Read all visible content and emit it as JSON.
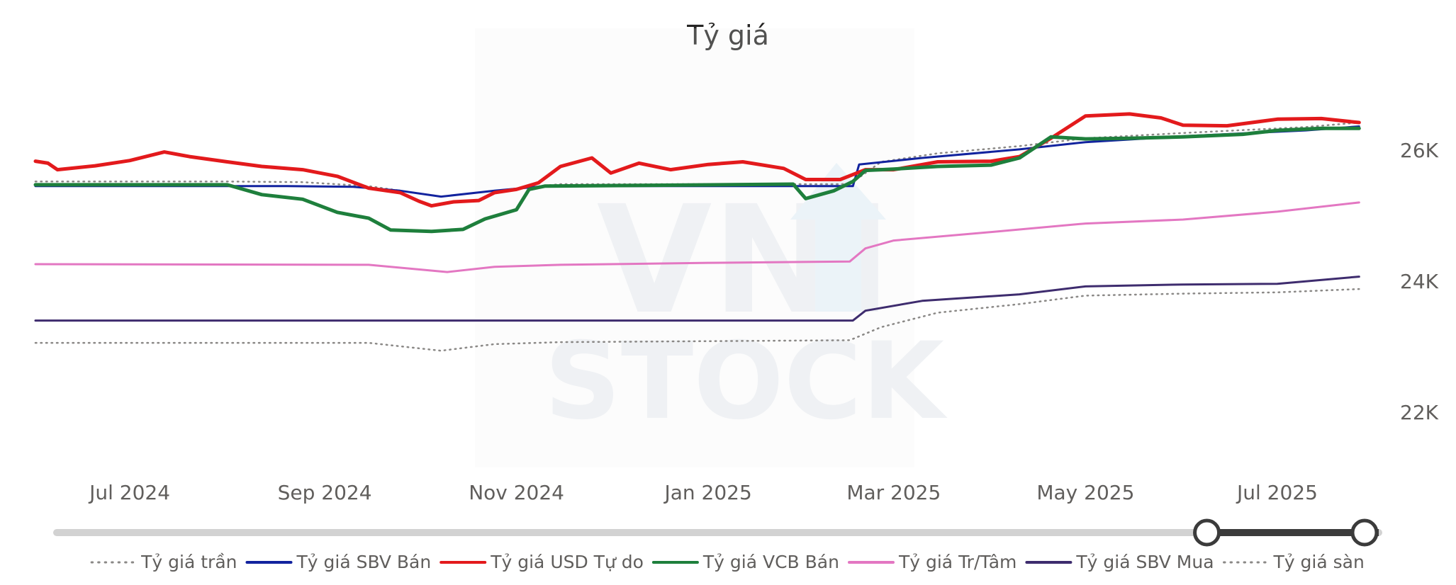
{
  "chart_data": {
    "type": "line",
    "title": "Tỷ giá",
    "xlabel": "",
    "ylabel": "",
    "x_start": "2024-06-01",
    "x_end": "2025-07-31",
    "x_ticks": [
      {
        "date": "2024-07-01",
        "label": "Jul 2024"
      },
      {
        "date": "2024-09-01",
        "label": "Sep 2024"
      },
      {
        "date": "2024-11-01",
        "label": "Nov 2024"
      },
      {
        "date": "2025-01-01",
        "label": "Jan 2025"
      },
      {
        "date": "2025-03-01",
        "label": "Mar 2025"
      },
      {
        "date": "2025-05-01",
        "label": "May 2025"
      },
      {
        "date": "2025-07-01",
        "label": "Jul 2025"
      }
    ],
    "ylim": [
      21700,
      27100
    ],
    "y_ticks": [
      {
        "value": 22000,
        "label": "22K"
      },
      {
        "value": 24000,
        "label": "24K"
      },
      {
        "value": 26000,
        "label": "26K"
      }
    ],
    "grid": false,
    "legend_position": "bottom",
    "series": [
      {
        "name": "Tỷ giá trần",
        "color": "#8a8886",
        "style": "dotted",
        "points": [
          [
            "2024-06-01",
            25520
          ],
          [
            "2024-08-01",
            25520
          ],
          [
            "2024-08-25",
            25510
          ],
          [
            "2024-09-15",
            25450
          ],
          [
            "2024-10-08",
            25290
          ],
          [
            "2024-10-25",
            25380
          ],
          [
            "2024-11-15",
            25480
          ],
          [
            "2025-02-15",
            25480
          ],
          [
            "2025-02-25",
            25820
          ],
          [
            "2025-03-15",
            25950
          ],
          [
            "2025-04-10",
            26060
          ],
          [
            "2025-05-01",
            26180
          ],
          [
            "2025-06-01",
            26260
          ],
          [
            "2025-07-10",
            26350
          ],
          [
            "2025-07-27",
            26420
          ]
        ]
      },
      {
        "name": "Tỷ giá SBV Bán",
        "color": "#12239e",
        "style": "solid",
        "width": 3,
        "points": [
          [
            "2024-06-01",
            25450
          ],
          [
            "2024-08-20",
            25450
          ],
          [
            "2024-09-10",
            25440
          ],
          [
            "2024-09-25",
            25380
          ],
          [
            "2024-10-08",
            25290
          ],
          [
            "2024-10-25",
            25380
          ],
          [
            "2024-11-10",
            25450
          ],
          [
            "2025-02-16",
            25450
          ],
          [
            "2025-02-18",
            25780
          ],
          [
            "2025-03-10",
            25880
          ],
          [
            "2025-04-10",
            26010
          ],
          [
            "2025-05-01",
            26120
          ],
          [
            "2025-06-01",
            26210
          ],
          [
            "2025-07-10",
            26300
          ],
          [
            "2025-07-27",
            26360
          ]
        ]
      },
      {
        "name": "Tỷ giá USD Tự do",
        "color": "#e31a1c",
        "style": "solid",
        "width": 5,
        "points": [
          [
            "2024-06-01",
            25830
          ],
          [
            "2024-06-05",
            25800
          ],
          [
            "2024-06-08",
            25700
          ],
          [
            "2024-06-20",
            25760
          ],
          [
            "2024-07-01",
            25840
          ],
          [
            "2024-07-12",
            25970
          ],
          [
            "2024-07-20",
            25900
          ],
          [
            "2024-08-01",
            25820
          ],
          [
            "2024-08-12",
            25750
          ],
          [
            "2024-08-25",
            25700
          ],
          [
            "2024-09-05",
            25600
          ],
          [
            "2024-09-15",
            25420
          ],
          [
            "2024-09-25",
            25350
          ],
          [
            "2024-10-01",
            25220
          ],
          [
            "2024-10-05",
            25150
          ],
          [
            "2024-10-12",
            25210
          ],
          [
            "2024-10-20",
            25230
          ],
          [
            "2024-10-25",
            25350
          ],
          [
            "2024-11-01",
            25400
          ],
          [
            "2024-11-08",
            25500
          ],
          [
            "2024-11-15",
            25750
          ],
          [
            "2024-11-25",
            25880
          ],
          [
            "2024-12-01",
            25650
          ],
          [
            "2024-12-10",
            25800
          ],
          [
            "2024-12-20",
            25700
          ],
          [
            "2025-01-01",
            25780
          ],
          [
            "2025-01-12",
            25820
          ],
          [
            "2025-01-25",
            25720
          ],
          [
            "2025-02-01",
            25550
          ],
          [
            "2025-02-12",
            25550
          ],
          [
            "2025-02-20",
            25700
          ],
          [
            "2025-03-01",
            25700
          ],
          [
            "2025-03-15",
            25820
          ],
          [
            "2025-04-01",
            25830
          ],
          [
            "2025-04-10",
            25900
          ],
          [
            "2025-04-20",
            26180
          ],
          [
            "2025-05-01",
            26520
          ],
          [
            "2025-05-15",
            26550
          ],
          [
            "2025-05-25",
            26490
          ],
          [
            "2025-06-01",
            26380
          ],
          [
            "2025-06-15",
            26370
          ],
          [
            "2025-07-01",
            26470
          ],
          [
            "2025-07-15",
            26480
          ],
          [
            "2025-07-27",
            26420
          ]
        ]
      },
      {
        "name": "Tỷ giá VCB Bán",
        "color": "#1e7f3c",
        "style": "solid",
        "width": 5,
        "points": [
          [
            "2024-06-01",
            25470
          ],
          [
            "2024-08-01",
            25470
          ],
          [
            "2024-08-12",
            25320
          ],
          [
            "2024-08-25",
            25250
          ],
          [
            "2024-09-05",
            25050
          ],
          [
            "2024-09-15",
            24960
          ],
          [
            "2024-09-22",
            24780
          ],
          [
            "2024-10-05",
            24760
          ],
          [
            "2024-10-15",
            24790
          ],
          [
            "2024-10-22",
            24950
          ],
          [
            "2024-11-01",
            25090
          ],
          [
            "2024-11-05",
            25400
          ],
          [
            "2024-11-10",
            25450
          ],
          [
            "2025-01-28",
            25480
          ],
          [
            "2025-02-01",
            25260
          ],
          [
            "2025-02-10",
            25380
          ],
          [
            "2025-02-16",
            25520
          ],
          [
            "2025-02-20",
            25690
          ],
          [
            "2025-03-01",
            25710
          ],
          [
            "2025-03-15",
            25750
          ],
          [
            "2025-04-01",
            25770
          ],
          [
            "2025-04-10",
            25880
          ],
          [
            "2025-04-20",
            26200
          ],
          [
            "2025-05-01",
            26170
          ],
          [
            "2025-05-15",
            26180
          ],
          [
            "2025-06-01",
            26200
          ],
          [
            "2025-06-20",
            26240
          ],
          [
            "2025-07-01",
            26300
          ],
          [
            "2025-07-15",
            26330
          ],
          [
            "2025-07-27",
            26330
          ]
        ]
      },
      {
        "name": "Tỷ giá Tr/Tâm",
        "color": "#e377c2",
        "style": "solid",
        "width": 3,
        "points": [
          [
            "2024-06-01",
            24260
          ],
          [
            "2024-09-15",
            24250
          ],
          [
            "2024-10-10",
            24140
          ],
          [
            "2024-10-25",
            24220
          ],
          [
            "2024-11-15",
            24250
          ],
          [
            "2025-01-01",
            24280
          ],
          [
            "2025-02-15",
            24300
          ],
          [
            "2025-02-20",
            24500
          ],
          [
            "2025-03-01",
            24620
          ],
          [
            "2025-04-01",
            24750
          ],
          [
            "2025-05-01",
            24880
          ],
          [
            "2025-06-01",
            24940
          ],
          [
            "2025-07-01",
            25060
          ],
          [
            "2025-07-27",
            25200
          ]
        ]
      },
      {
        "name": "Tỷ giá SBV Mua",
        "color": "#3e2c6e",
        "style": "solid",
        "width": 3,
        "points": [
          [
            "2024-06-01",
            23400
          ],
          [
            "2025-02-16",
            23400
          ],
          [
            "2025-02-20",
            23550
          ],
          [
            "2025-03-10",
            23700
          ],
          [
            "2025-04-10",
            23800
          ],
          [
            "2025-05-01",
            23920
          ],
          [
            "2025-06-01",
            23950
          ],
          [
            "2025-07-01",
            23960
          ],
          [
            "2025-07-27",
            24070
          ]
        ]
      },
      {
        "name": "Tỷ giá sàn",
        "color": "#8a8886",
        "style": "dotted",
        "points": [
          [
            "2024-06-01",
            23060
          ],
          [
            "2024-09-15",
            23060
          ],
          [
            "2024-10-08",
            22940
          ],
          [
            "2024-10-25",
            23040
          ],
          [
            "2024-11-15",
            23070
          ],
          [
            "2025-02-15",
            23100
          ],
          [
            "2025-02-25",
            23300
          ],
          [
            "2025-03-15",
            23520
          ],
          [
            "2025-04-10",
            23650
          ],
          [
            "2025-05-01",
            23780
          ],
          [
            "2025-06-01",
            23810
          ],
          [
            "2025-07-01",
            23830
          ],
          [
            "2025-07-27",
            23880
          ]
        ]
      }
    ]
  },
  "range_slider": {
    "start_fraction": 0.87,
    "end_fraction": 1.0
  }
}
